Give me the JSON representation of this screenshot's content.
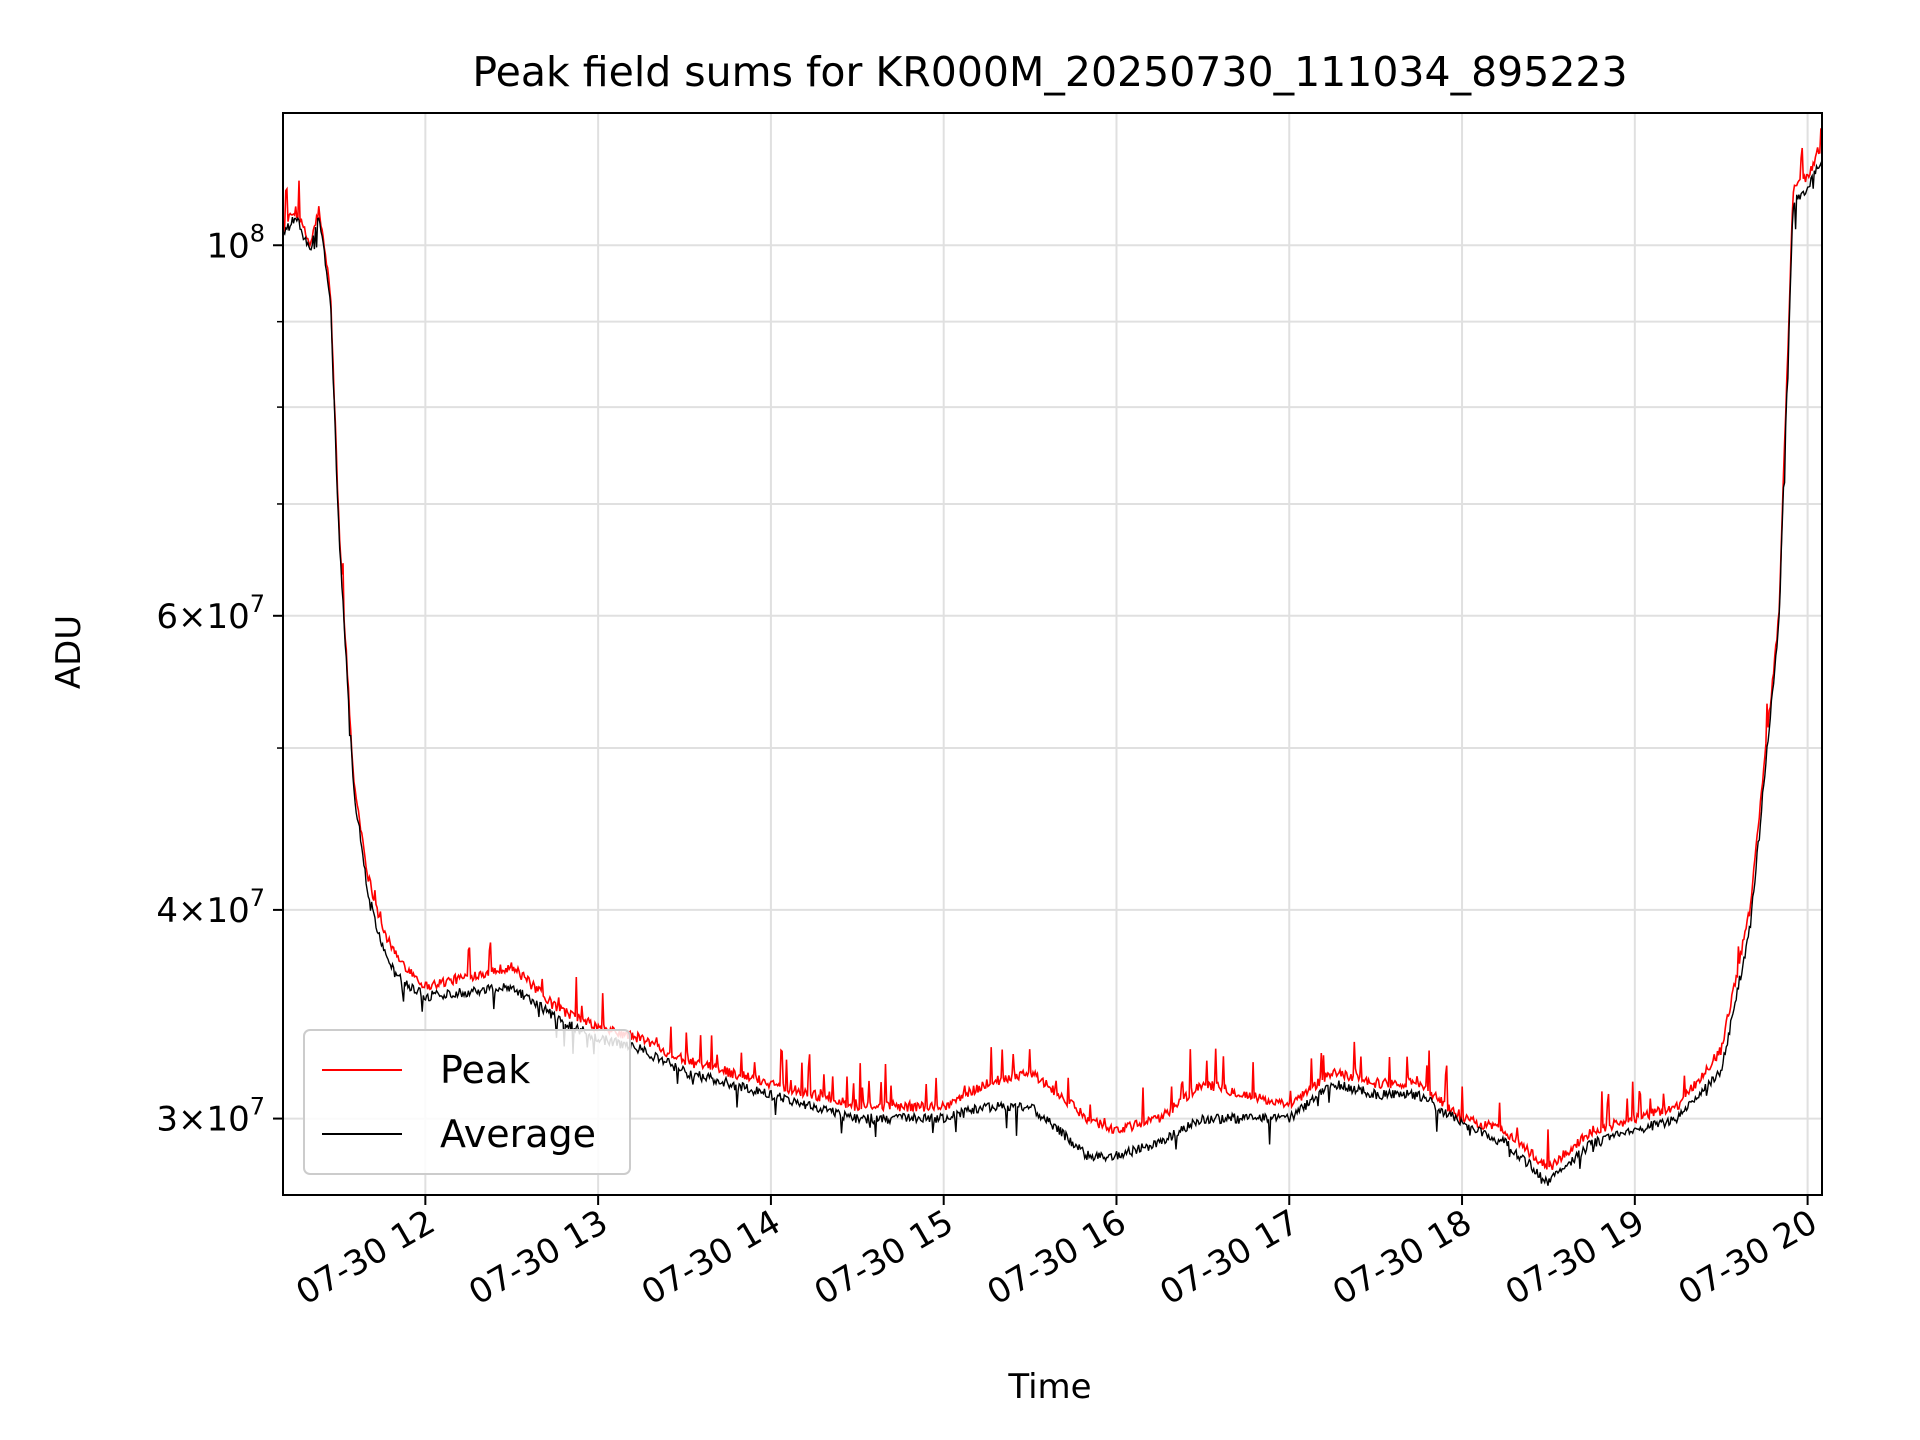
{
  "chart_data": {
    "type": "line",
    "title": "Peak field sums for KR000M_20250730_111034_895223",
    "xlabel": "Time",
    "ylabel": "ADU",
    "y_scale": "log",
    "ylim": [
      27000000,
      120000000
    ],
    "xlim": [
      "2025-07-30 11:10:34",
      "2025-07-30 20:05:00"
    ],
    "x_ticks": [
      "2025-07-30 12:00",
      "2025-07-30 13:00",
      "2025-07-30 14:00",
      "2025-07-30 15:00",
      "2025-07-30 16:00",
      "2025-07-30 17:00",
      "2025-07-30 18:00",
      "2025-07-30 19:00",
      "2025-07-30 20:00"
    ],
    "x_tick_labels": [
      "07-30 12",
      "07-30 13",
      "07-30 14",
      "07-30 15",
      "07-30 16",
      "07-30 17",
      "07-30 18",
      "07-30 19",
      "07-30 20"
    ],
    "y_major_ticks": [
      {
        "value": 30000000,
        "label": "3×10^7"
      },
      {
        "value": 40000000,
        "label": "4×10^7"
      },
      {
        "value": 60000000,
        "label": "6×10^7"
      },
      {
        "value": 100000000,
        "label": "10^8"
      }
    ],
    "y_minor_ticks": [
      50000000,
      70000000,
      80000000,
      90000000
    ],
    "grid": true,
    "legend_position": "lower-left",
    "series": [
      {
        "name": "Peak",
        "color": "#ff0000",
        "x": [
          "2025-07-30 11:10",
          "2025-07-30 11:15",
          "2025-07-30 11:20",
          "2025-07-30 11:23",
          "2025-07-30 11:27",
          "2025-07-30 11:30",
          "2025-07-30 11:35",
          "2025-07-30 11:40",
          "2025-07-30 11:45",
          "2025-07-30 11:50",
          "2025-07-30 12:00",
          "2025-07-30 12:30",
          "2025-07-30 12:45",
          "2025-07-30 13:00",
          "2025-07-30 13:15",
          "2025-07-30 13:30",
          "2025-07-30 14:00",
          "2025-07-30 14:30",
          "2025-07-30 15:00",
          "2025-07-30 15:15",
          "2025-07-30 15:30",
          "2025-07-30 15:40",
          "2025-07-30 15:50",
          "2025-07-30 16:00",
          "2025-07-30 16:15",
          "2025-07-30 16:30",
          "2025-07-30 17:00",
          "2025-07-30 17:15",
          "2025-07-30 17:30",
          "2025-07-30 17:45",
          "2025-07-30 18:00",
          "2025-07-30 18:15",
          "2025-07-30 18:30",
          "2025-07-30 18:45",
          "2025-07-30 19:00",
          "2025-07-30 19:15",
          "2025-07-30 19:30",
          "2025-07-30 19:40",
          "2025-07-30 19:50",
          "2025-07-30 19:55",
          "2025-07-30 20:00",
          "2025-07-30 20:05"
        ],
        "y": [
          102000000,
          105000000,
          100000000,
          105000000,
          94000000,
          68000000,
          48000000,
          42000000,
          39000000,
          37500000,
          36000000,
          37000000,
          35000000,
          34000000,
          33500000,
          32500000,
          31500000,
          30500000,
          30500000,
          31500000,
          32000000,
          31000000,
          30000000,
          29500000,
          30000000,
          31500000,
          30500000,
          32000000,
          31500000,
          31500000,
          30000000,
          29500000,
          28000000,
          29500000,
          30000000,
          30500000,
          33000000,
          40000000,
          60000000,
          108000000,
          110000000,
          115000000
        ]
      },
      {
        "name": "Average",
        "color": "#000000",
        "x": [
          "2025-07-30 11:10",
          "2025-07-30 11:15",
          "2025-07-30 11:20",
          "2025-07-30 11:23",
          "2025-07-30 11:27",
          "2025-07-30 11:30",
          "2025-07-30 11:35",
          "2025-07-30 11:40",
          "2025-07-30 11:45",
          "2025-07-30 11:50",
          "2025-07-30 12:00",
          "2025-07-30 12:30",
          "2025-07-30 12:45",
          "2025-07-30 13:00",
          "2025-07-30 13:15",
          "2025-07-30 13:30",
          "2025-07-30 14:00",
          "2025-07-30 14:30",
          "2025-07-30 15:00",
          "2025-07-30 15:15",
          "2025-07-30 15:30",
          "2025-07-30 15:40",
          "2025-07-30 15:50",
          "2025-07-30 16:00",
          "2025-07-30 16:15",
          "2025-07-30 16:30",
          "2025-07-30 17:00",
          "2025-07-30 17:15",
          "2025-07-30 17:30",
          "2025-07-30 17:45",
          "2025-07-30 18:00",
          "2025-07-30 18:15",
          "2025-07-30 18:30",
          "2025-07-30 18:45",
          "2025-07-30 19:00",
          "2025-07-30 19:15",
          "2025-07-30 19:30",
          "2025-07-30 19:40",
          "2025-07-30 19:50",
          "2025-07-30 19:55",
          "2025-07-30 20:00",
          "2025-07-30 20:05"
        ],
        "y": [
          101000000,
          104000000,
          99000000,
          104000000,
          93000000,
          67000000,
          47500000,
          41000000,
          38000000,
          36500000,
          35500000,
          36000000,
          34500000,
          33500000,
          33000000,
          32000000,
          31000000,
          30000000,
          30000000,
          30500000,
          30500000,
          29500000,
          28500000,
          28500000,
          29000000,
          30000000,
          30000000,
          31500000,
          31000000,
          31000000,
          29800000,
          29000000,
          27500000,
          29000000,
          29500000,
          30000000,
          32000000,
          39000000,
          59000000,
          106000000,
          108000000,
          113000000
        ]
      }
    ]
  }
}
